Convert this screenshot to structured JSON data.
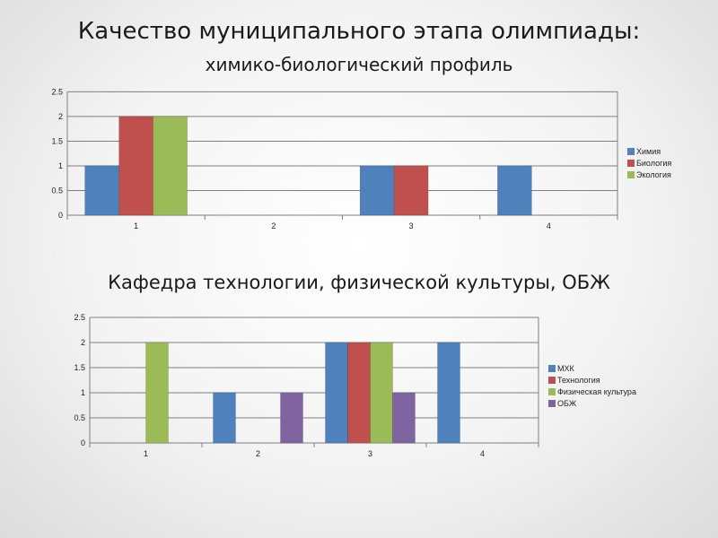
{
  "header": {
    "title": "Качество  муниципального этапа олимпиады:",
    "subtitle": "химико-биологический профиль"
  },
  "section2": {
    "title": "Кафедра технологии, физической культуры, ОБЖ"
  },
  "chart_data": [
    {
      "type": "bar",
      "categories": [
        "1",
        "2",
        "3",
        "4"
      ],
      "series": [
        {
          "name": "Химия",
          "color": "#4f81bd",
          "values": [
            1,
            0,
            1,
            1
          ]
        },
        {
          "name": "Биология",
          "color": "#c0504d",
          "values": [
            2,
            0,
            1,
            0
          ]
        },
        {
          "name": "Экология",
          "color": "#9bbb59",
          "values": [
            2,
            0,
            0,
            0
          ]
        }
      ],
      "yticks": [
        "0",
        "0.5",
        "1",
        "1.5",
        "2",
        "2.5"
      ],
      "ylim": [
        0,
        2.5
      ],
      "grid": true,
      "legend": "right"
    },
    {
      "type": "bar",
      "categories": [
        "1",
        "2",
        "3",
        "4"
      ],
      "series": [
        {
          "name": "МХК",
          "color": "#4f81bd",
          "values": [
            0,
            1,
            2,
            2
          ]
        },
        {
          "name": "Технология",
          "color": "#c0504d",
          "values": [
            0,
            0,
            2,
            0
          ]
        },
        {
          "name": "Физическая культура",
          "color": "#9bbb59",
          "values": [
            2,
            0,
            2,
            0
          ]
        },
        {
          "name": "ОБЖ",
          "color": "#8064a2",
          "values": [
            0,
            1,
            1,
            0
          ]
        }
      ],
      "yticks": [
        "0",
        "0.5",
        "1",
        "1.5",
        "2",
        "2.5"
      ],
      "ylim": [
        0,
        2.5
      ],
      "grid": true,
      "legend": "right"
    }
  ]
}
